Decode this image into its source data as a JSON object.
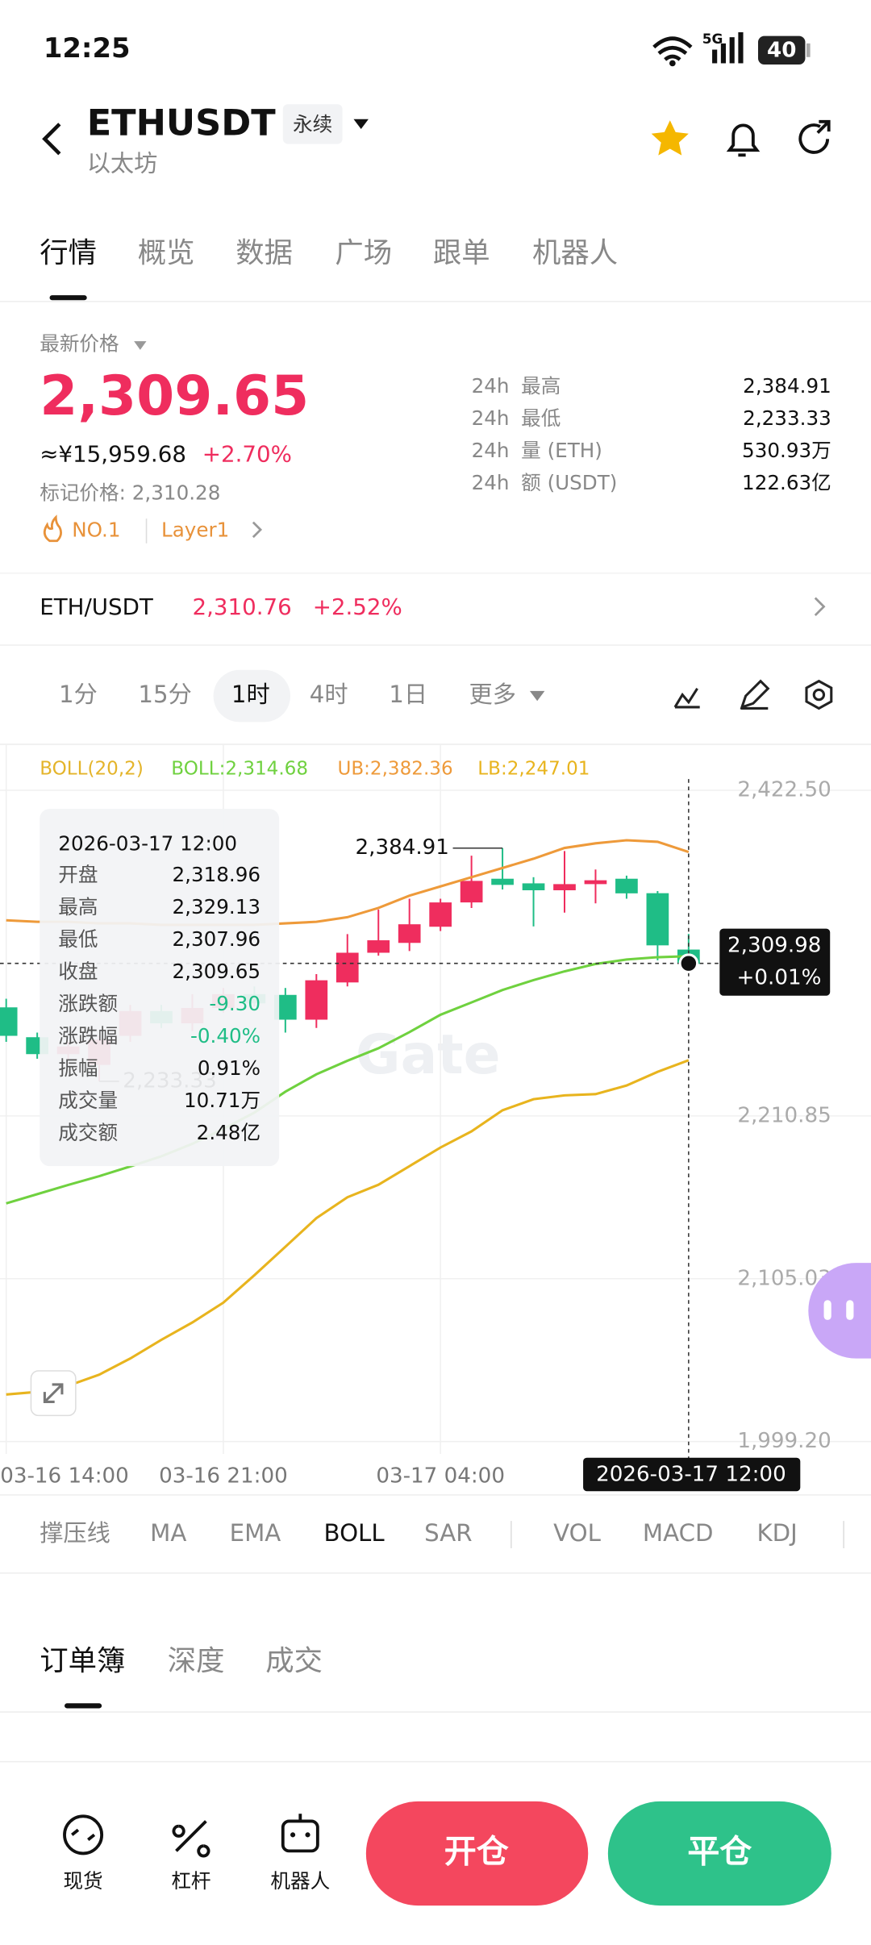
{
  "status_bar": {
    "time": "12:25",
    "network": "5G",
    "battery": "40"
  },
  "header": {
    "symbol": "ETHUSDT",
    "contract": "永续",
    "name": "以太坊"
  },
  "tabs": [
    "行情",
    "概览",
    "数据",
    "广场",
    "跟单",
    "机器人"
  ],
  "price": {
    "label": "最新价格",
    "last": "2,309.65",
    "cny": "≈¥15,959.68",
    "change": "+2.70%",
    "mark": "标记价格: 2,310.28",
    "tags": [
      "NO.1",
      "Layer1"
    ]
  },
  "stats": [
    {
      "period": "24h",
      "label": "最高",
      "value": "2,384.91"
    },
    {
      "period": "24h",
      "label": "最低",
      "value": "2,233.33"
    },
    {
      "period": "24h",
      "label": "量 (ETH)",
      "value": "530.93万"
    },
    {
      "period": "24h",
      "label": "额 (USDT)",
      "value": "122.63亿"
    }
  ],
  "spot": {
    "pair": "ETH/USDT",
    "price": "2,310.76",
    "change": "+2.52%"
  },
  "intervals": [
    "1分",
    "15分",
    "1时",
    "4时",
    "1日",
    "更多"
  ],
  "chart_data": {
    "type": "candlestick",
    "indicator": "BOLL(20,2)",
    "watermark": "Gate",
    "categories": [
      "03-16 14:00",
      null,
      null,
      null,
      null,
      null,
      null,
      "03-16 21:00",
      null,
      null,
      null,
      null,
      null,
      null,
      "03-17 04:00",
      null,
      null,
      null,
      null,
      null,
      null,
      null,
      null
    ],
    "open": [
      2281.4,
      2262.0,
      2251.0,
      2244.0,
      2262.9,
      2279.0,
      2271.0,
      2281.0,
      2290.0,
      2289.5,
      2273.4,
      2297.6,
      2316.9,
      2323.3,
      2333.8,
      2349.6,
      2365.0,
      2362.0,
      2357.5,
      2361.5,
      2365.0,
      2355.6,
      2318.96
    ],
    "high": [
      2287,
      2265,
      2259,
      2263,
      2283,
      2283,
      2290,
      2294,
      2295,
      2294,
      2303,
      2329,
      2345,
      2352,
      2352,
      2380,
      2384.91,
      2366,
      2383,
      2371,
      2367,
      2357,
      2329.13
    ],
    "low": [
      2259,
      2248,
      2247,
      2233.33,
      2259,
      2268,
      2266,
      2278,
      2282,
      2265,
      2268,
      2295,
      2315,
      2318,
      2331,
      2346,
      2358,
      2334,
      2343,
      2349,
      2352,
      2312,
      2307.96
    ],
    "close": [
      2262.9,
      2251.0,
      2256.0,
      2260.5,
      2279.0,
      2271.0,
      2281.0,
      2290.0,
      2284.0,
      2273.4,
      2299.0,
      2316.9,
      2325.0,
      2335.4,
      2349.6,
      2363.6,
      2361.0,
      2357.5,
      2361.5,
      2364.0,
      2355.5,
      2321.7,
      2309.65
    ],
    "up_color": "#ef2d5e",
    "down_color": "#1fbd86",
    "series": [
      {
        "name": "BOLL:2,314.68",
        "color": "#6fd13f",
        "values": [
          2154,
          2160,
          2166,
          2171.7,
          2178,
          2184.6,
          2192.7,
          2202.4,
          2213,
          2226.6,
          2237.9,
          2246.7,
          2254.8,
          2265.3,
          2276.6,
          2284.6,
          2292.7,
          2299.1,
          2304.8,
          2309.6,
          2312.5,
          2314.0,
          2314.68
        ]
      },
      {
        "name": "UB:2,382.36",
        "color": "#ee9a3a",
        "values": [
          2338,
          2337,
          2337,
          2336,
          2336,
          2335,
          2335,
          2335,
          2335,
          2336,
          2337,
          2340,
          2346,
          2354,
          2360,
          2366,
          2372,
          2378,
          2385,
          2388,
          2390,
          2389,
          2382.36
        ]
      },
      {
        "name": "LB:2,247.01",
        "color": "#e8b41e",
        "values": [
          2029.8,
          2031.5,
          2035.5,
          2042.7,
          2053.2,
          2065.3,
          2076.6,
          2089.5,
          2107.3,
          2125.8,
          2144.4,
          2158,
          2166.1,
          2178.2,
          2190.3,
          2200.8,
          2214.5,
          2221.7,
          2224.2,
          2225,
          2230.6,
          2239.5,
          2247.01
        ]
      }
    ],
    "max_label": "2,384.91",
    "min_label": "2,233.33",
    "ylim": [
      1991.14,
      2452.33
    ],
    "yticks": [
      {
        "value": 2422.5,
        "label": "2,422.50"
      },
      {
        "value": 2210.85,
        "label": "2,210.85"
      },
      {
        "value": 2105.03,
        "label": "2,105.03"
      },
      {
        "value": 1999.2,
        "label": "1,999.20"
      }
    ],
    "grid": true,
    "crosshair": {
      "time": "2026-03-17 12:00",
      "price": 2309.98,
      "price_label": "2,309.98",
      "change": "+0.01%"
    },
    "tooltip": {
      "time": "2026-03-17 12:00",
      "rows": [
        {
          "label": "开盘",
          "value": "2,318.96"
        },
        {
          "label": "最高",
          "value": "2,329.13"
        },
        {
          "label": "最低",
          "value": "2,307.96"
        },
        {
          "label": "收盘",
          "value": "2,309.65"
        },
        {
          "label": "涨跌额",
          "value": "-9.30"
        },
        {
          "label": "涨跌幅",
          "value": "-0.40%"
        },
        {
          "label": "振幅",
          "value": "0.91%"
        },
        {
          "label": "成交量",
          "value": "10.71万"
        },
        {
          "label": "成交额",
          "value": "2.48亿"
        }
      ]
    }
  },
  "indicators": [
    "撑压线",
    "MA",
    "EMA",
    "BOLL",
    "SAR",
    "VOL",
    "MACD",
    "KDJ"
  ],
  "book_tabs": [
    "订单簿",
    "深度",
    "成交"
  ],
  "bottom_nav": [
    "现货",
    "杠杆",
    "机器人"
  ],
  "actions": [
    "开仓",
    "平仓"
  ]
}
